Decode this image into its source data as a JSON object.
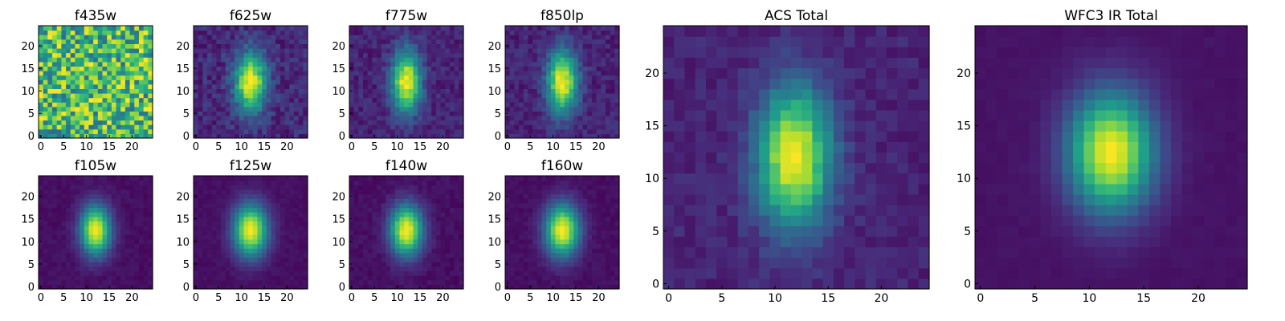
{
  "figure": {
    "colormap": "viridis",
    "colormap_stops": [
      "#440154",
      "#482878",
      "#3e4a89",
      "#31688e",
      "#26828e",
      "#1f9e89",
      "#35b779",
      "#6ece58",
      "#b5de2b",
      "#fde725"
    ]
  },
  "chart_data": [
    {
      "type": "heatmap",
      "title": "f435w",
      "grid": [
        25,
        25
      ],
      "profile": "noise",
      "sigma_x": 0,
      "sigma_y": 0,
      "noise": 1.0,
      "floor": 0.0,
      "xticks": [
        "0",
        "5",
        "10",
        "15",
        "20"
      ],
      "yticks": [
        "0",
        "5",
        "10",
        "15",
        "20"
      ],
      "xlim": [
        0,
        25
      ],
      "ylim": [
        0,
        25
      ]
    },
    {
      "type": "heatmap",
      "title": "f625w",
      "grid": [
        25,
        25
      ],
      "profile": "gaussian",
      "center": [
        12,
        12
      ],
      "sigma_x": 2.4,
      "sigma_y": 4.5,
      "noise": 0.18,
      "floor": 0.12,
      "xticks": [
        "0",
        "5",
        "10",
        "15",
        "20"
      ],
      "yticks": [
        "0",
        "5",
        "10",
        "15",
        "20"
      ],
      "xlim": [
        0,
        25
      ],
      "ylim": [
        0,
        25
      ]
    },
    {
      "type": "heatmap",
      "title": "f775w",
      "grid": [
        25,
        25
      ],
      "profile": "gaussian",
      "center": [
        12,
        12
      ],
      "sigma_x": 2.2,
      "sigma_y": 4.8,
      "noise": 0.14,
      "floor": 0.1,
      "xticks": [
        "0",
        "5",
        "10",
        "15",
        "20"
      ],
      "yticks": [
        "0",
        "5",
        "10",
        "15",
        "20"
      ],
      "xlim": [
        0,
        25
      ],
      "ylim": [
        0,
        25
      ]
    },
    {
      "type": "heatmap",
      "title": "f850lp",
      "grid": [
        25,
        25
      ],
      "profile": "gaussian",
      "center": [
        12,
        12
      ],
      "sigma_x": 2.3,
      "sigma_y": 4.8,
      "noise": 0.14,
      "floor": 0.1,
      "xticks": [
        "0",
        "5",
        "10",
        "15",
        "20"
      ],
      "yticks": [
        "0",
        "5",
        "10",
        "15",
        "20"
      ],
      "xlim": [
        0,
        25
      ],
      "ylim": [
        0,
        25
      ]
    },
    {
      "type": "heatmap",
      "title": "f105w",
      "grid": [
        25,
        25
      ],
      "profile": "gaussian",
      "center": [
        12,
        12.5
      ],
      "sigma_x": 2.3,
      "sigma_y": 3.8,
      "noise": 0.05,
      "floor": 0.04,
      "xticks": [
        "0",
        "5",
        "10",
        "15",
        "20"
      ],
      "yticks": [
        "0",
        "5",
        "10",
        "15",
        "20"
      ],
      "xlim": [
        0,
        25
      ],
      "ylim": [
        0,
        25
      ]
    },
    {
      "type": "heatmap",
      "title": "f125w",
      "grid": [
        25,
        25
      ],
      "profile": "gaussian",
      "center": [
        12,
        12.5
      ],
      "sigma_x": 2.6,
      "sigma_y": 4.0,
      "noise": 0.04,
      "floor": 0.04,
      "xticks": [
        "0",
        "5",
        "10",
        "15",
        "20"
      ],
      "yticks": [
        "0",
        "5",
        "10",
        "15",
        "20"
      ],
      "xlim": [
        0,
        25
      ],
      "ylim": [
        0,
        25
      ]
    },
    {
      "type": "heatmap",
      "title": "f140w",
      "grid": [
        25,
        25
      ],
      "profile": "gaussian",
      "center": [
        12,
        12.5
      ],
      "sigma_x": 2.5,
      "sigma_y": 3.9,
      "noise": 0.06,
      "floor": 0.04,
      "xticks": [
        "0",
        "5",
        "10",
        "15",
        "20"
      ],
      "yticks": [
        "0",
        "5",
        "10",
        "15",
        "20"
      ],
      "xlim": [
        0,
        25
      ],
      "ylim": [
        0,
        25
      ]
    },
    {
      "type": "heatmap",
      "title": "f160w",
      "grid": [
        25,
        25
      ],
      "profile": "gaussian",
      "center": [
        12,
        12.5
      ],
      "sigma_x": 2.6,
      "sigma_y": 4.0,
      "noise": 0.05,
      "floor": 0.04,
      "xticks": [
        "0",
        "5",
        "10",
        "15",
        "20"
      ],
      "yticks": [
        "0",
        "5",
        "10",
        "15",
        "20"
      ],
      "xlim": [
        0,
        25
      ],
      "ylim": [
        0,
        25
      ]
    },
    {
      "type": "heatmap",
      "title": "ACS Total",
      "grid": [
        25,
        25
      ],
      "profile": "gaussian",
      "center": [
        11.8,
        12
      ],
      "sigma_x": 2.4,
      "sigma_y": 4.6,
      "noise": 0.1,
      "floor": 0.1,
      "xticks": [
        "0",
        "5",
        "10",
        "15",
        "20"
      ],
      "yticks": [
        "0",
        "5",
        "10",
        "15",
        "20"
      ],
      "xlim": [
        0,
        25
      ],
      "ylim": [
        0,
        25
      ]
    },
    {
      "type": "heatmap",
      "title": "WFC3 IR Total",
      "grid": [
        25,
        25
      ],
      "profile": "gaussian",
      "center": [
        12,
        12.5
      ],
      "sigma_x": 2.7,
      "sigma_y": 3.9,
      "noise": 0.02,
      "floor": 0.05,
      "xticks": [
        "0",
        "5",
        "10",
        "15",
        "20"
      ],
      "yticks": [
        "0",
        "5",
        "10",
        "15",
        "20"
      ],
      "xlim": [
        0,
        25
      ],
      "ylim": [
        0,
        25
      ]
    }
  ]
}
